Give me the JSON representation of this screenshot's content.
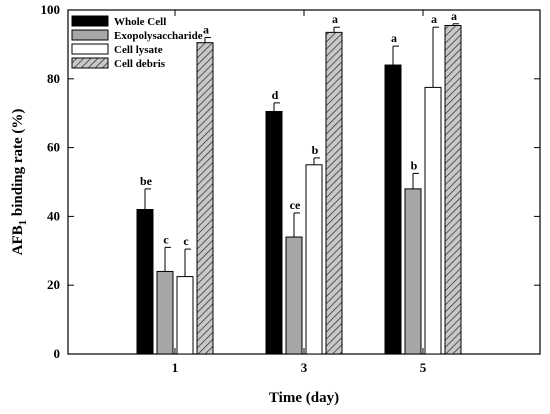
{
  "chart_data": {
    "type": "bar",
    "categories": [
      "1",
      "3",
      "5"
    ],
    "xlabel": "Time (day)",
    "ylabel_main": "AFB",
    "ylabel_sub": "1",
    "ylabel_rest": " binding rate (%)",
    "ylim": [
      0,
      100
    ],
    "yticks": [
      "0",
      "20",
      "40",
      "60",
      "80",
      "100"
    ],
    "grid": false,
    "legend_position": "top-left",
    "series": [
      {
        "name": "Whole Cell",
        "fill": "#000000",
        "pattern": "solid",
        "values": [
          42,
          70.5,
          84
        ],
        "errors": [
          6,
          2.5,
          5.5
        ],
        "labels": [
          "be",
          "d",
          "a"
        ]
      },
      {
        "name": "Exopolysaccharide",
        "fill": "#a6a6a6",
        "pattern": "solid",
        "values": [
          24,
          34,
          48
        ],
        "errors": [
          7,
          7,
          4.5
        ],
        "labels": [
          "c",
          "ce",
          "b"
        ]
      },
      {
        "name": "Cell lysate",
        "fill": "#ffffff",
        "pattern": "solid",
        "values": [
          22.5,
          55,
          77.5
        ],
        "errors": [
          8,
          2,
          17.5
        ],
        "labels": [
          "c",
          "b",
          "a"
        ]
      },
      {
        "name": "Cell debris",
        "fill": "#c8c8c8",
        "pattern": "hatch",
        "values": [
          90.5,
          93.5,
          95.5
        ],
        "errors": [
          1.5,
          1.5,
          0.5
        ],
        "labels": [
          "a",
          "a",
          "a"
        ]
      }
    ]
  }
}
